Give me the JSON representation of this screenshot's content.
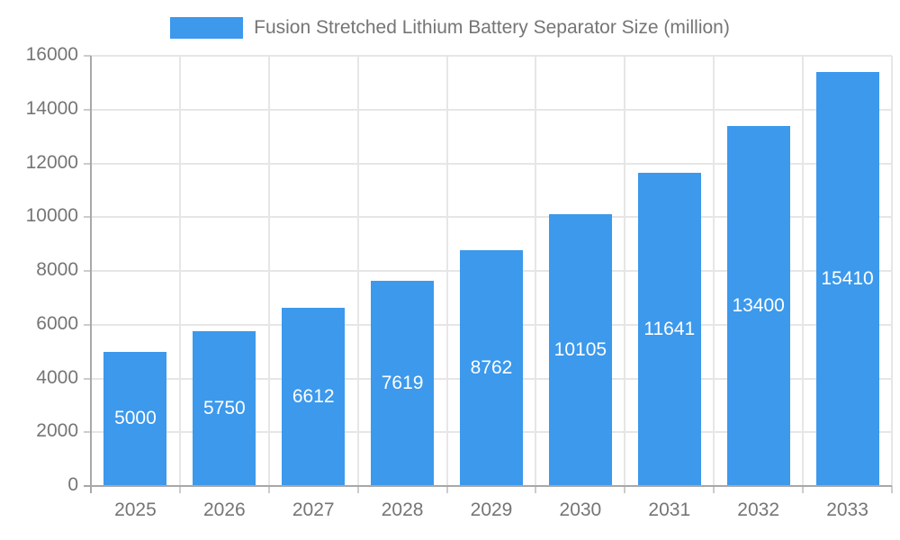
{
  "chart_data": {
    "type": "bar",
    "title": "Fusion Stretched Lithium Battery Separator Size (million)",
    "categories": [
      "2025",
      "2026",
      "2027",
      "2028",
      "2029",
      "2030",
      "2031",
      "2032",
      "2033"
    ],
    "values": [
      5000,
      5750,
      6612,
      7619,
      8762,
      10105,
      11641,
      13400,
      15410
    ],
    "series_name": "Fusion Stretched Lithium Battery Separator Size (million)",
    "xlabel": "",
    "ylabel": "",
    "ylim": [
      0,
      16000
    ],
    "yticks": [
      0,
      2000,
      4000,
      6000,
      8000,
      10000,
      12000,
      14000,
      16000
    ],
    "grid": "on",
    "legend_position": "top-center",
    "bar_labels_inside": true
  },
  "colors": {
    "bar": "#3C99EC",
    "grid": "#E6E6E6",
    "axis": "#A8A8A8",
    "tick": "#CCCCCC",
    "text": "#757575",
    "bar_label": "#FFFFFF",
    "background": "#FFFFFF"
  }
}
